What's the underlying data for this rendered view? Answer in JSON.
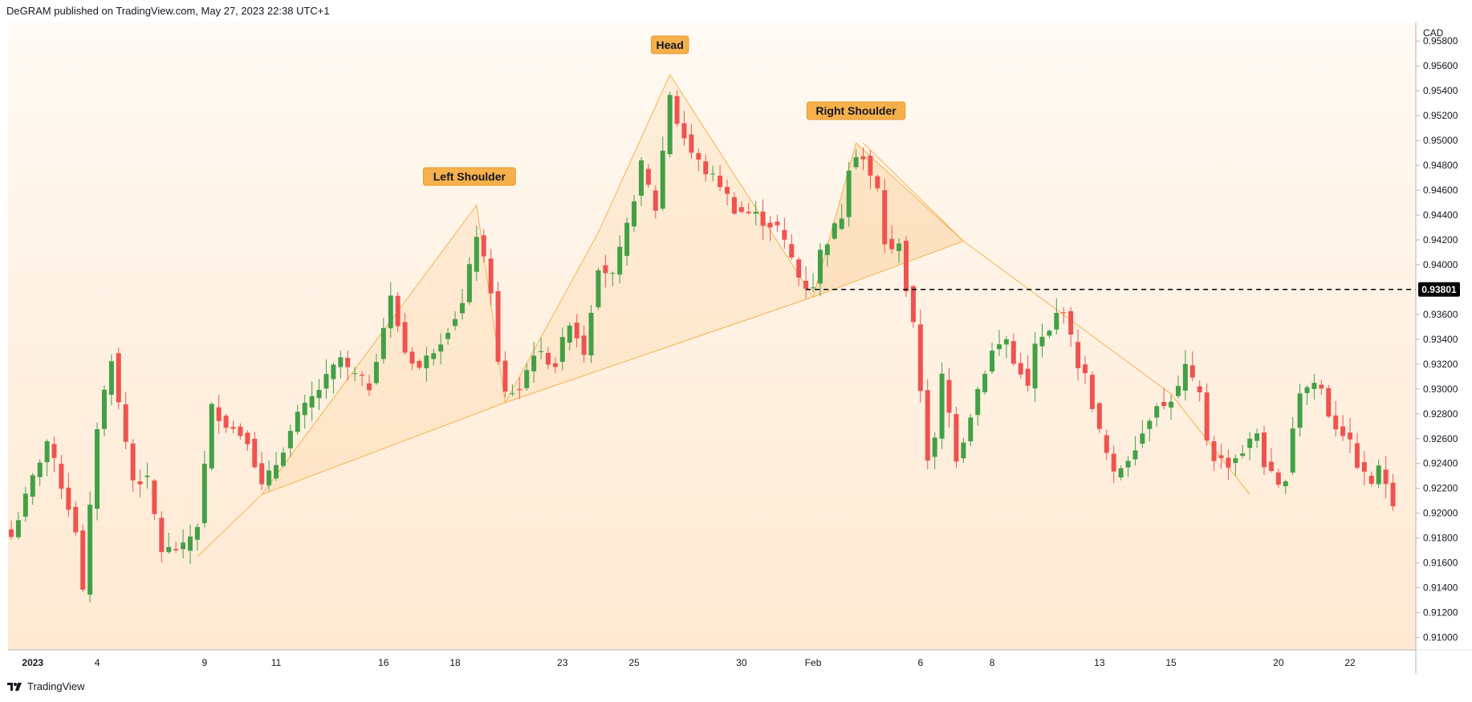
{
  "header": {
    "publisher": "DeGRAM published on TradingView.com, May 27, 2023 22:38 UTC+1"
  },
  "footer": {
    "brand": "TradingView"
  },
  "colors": {
    "up": "#43a047",
    "down": "#ef5350",
    "pattern_line": "#f6b04b",
    "background": "#fff4e6"
  },
  "chart_data": {
    "type": "candlestick",
    "currency_label": "CAD",
    "ylim": [
      0.909,
      0.9595
    ],
    "y_ticks": [
      "0.95800",
      "0.95600",
      "0.95400",
      "0.95200",
      "0.95000",
      "0.94800",
      "0.94600",
      "0.94400",
      "0.94200",
      "0.94000",
      "0.93600",
      "0.93400",
      "0.93200",
      "0.93000",
      "0.92800",
      "0.92600",
      "0.92400",
      "0.92200",
      "0.92000",
      "0.91800",
      "0.91600",
      "0.91400",
      "0.91200",
      "0.91000"
    ],
    "x_ticks": [
      {
        "label": "2023",
        "bar": 3
      },
      {
        "label": "4",
        "bar": 12
      },
      {
        "label": "9",
        "bar": 27
      },
      {
        "label": "11",
        "bar": 37
      },
      {
        "label": "16",
        "bar": 52
      },
      {
        "label": "18",
        "bar": 62
      },
      {
        "label": "23",
        "bar": 77
      },
      {
        "label": "25",
        "bar": 87
      },
      {
        "label": "30",
        "bar": 102
      },
      {
        "label": "Feb",
        "bar": 112
      },
      {
        "label": "6",
        "bar": 127
      },
      {
        "label": "8",
        "bar": 137
      },
      {
        "label": "13",
        "bar": 152
      },
      {
        "label": "15",
        "bar": 162
      },
      {
        "label": "20",
        "bar": 177
      },
      {
        "label": "22",
        "bar": 187
      }
    ],
    "key_level": 0.93801,
    "key_level_label": "0.93801",
    "pattern_labels": [
      {
        "text": "Left Shoulder",
        "bar": 64,
        "price": 0.9471
      },
      {
        "text": "Head",
        "bar": 92,
        "price": 0.9577
      },
      {
        "text": "Right Shoulder",
        "bar": 118,
        "price": 0.9524
      }
    ],
    "zigzag": [
      [
        26,
        0.9165
      ],
      [
        35,
        0.9215
      ],
      [
        65,
        0.9448
      ],
      [
        69,
        0.9289
      ],
      [
        82,
        0.9426
      ],
      [
        92,
        0.9553
      ],
      [
        112,
        0.9374
      ],
      [
        118,
        0.9498
      ],
      [
        133,
        0.9419
      ]
    ],
    "neckline": [
      [
        35,
        0.9215
      ],
      [
        69,
        0.9289
      ],
      [
        112,
        0.9374
      ],
      [
        133,
        0.9419
      ]
    ],
    "declining_line": [
      [
        119,
        0.9498
      ],
      [
        133,
        0.9419
      ],
      [
        162,
        0.9296
      ],
      [
        173,
        0.9215
      ]
    ],
    "anchors": [
      [
        0,
        0.9181
      ],
      [
        3,
        0.9228
      ],
      [
        5,
        0.9258
      ],
      [
        9,
        0.9187
      ],
      [
        10,
        0.9136
      ],
      [
        12,
        0.927
      ],
      [
        14,
        0.9326
      ],
      [
        15,
        0.9288
      ],
      [
        17,
        0.9227
      ],
      [
        19,
        0.9226
      ],
      [
        21,
        0.917
      ],
      [
        24,
        0.9172
      ],
      [
        26,
        0.9191
      ],
      [
        28,
        0.9285
      ],
      [
        30,
        0.9272
      ],
      [
        33,
        0.926
      ],
      [
        35,
        0.9221
      ],
      [
        37,
        0.924
      ],
      [
        40,
        0.9278
      ],
      [
        43,
        0.93
      ],
      [
        46,
        0.9325
      ],
      [
        47,
        0.9315
      ],
      [
        50,
        0.9302
      ],
      [
        52,
        0.935
      ],
      [
        53,
        0.9373
      ],
      [
        55,
        0.933
      ],
      [
        57,
        0.9317
      ],
      [
        60,
        0.934
      ],
      [
        63,
        0.9368
      ],
      [
        65,
        0.9425
      ],
      [
        67,
        0.938
      ],
      [
        68,
        0.932
      ],
      [
        69,
        0.9296
      ],
      [
        71,
        0.93
      ],
      [
        73,
        0.933
      ],
      [
        76,
        0.932
      ],
      [
        78,
        0.9355
      ],
      [
        80,
        0.933
      ],
      [
        82,
        0.94
      ],
      [
        84,
        0.939
      ],
      [
        86,
        0.943
      ],
      [
        88,
        0.948
      ],
      [
        90,
        0.9445
      ],
      [
        92,
        0.9538
      ],
      [
        93,
        0.9515
      ],
      [
        95,
        0.949
      ],
      [
        97,
        0.9475
      ],
      [
        99,
        0.9465
      ],
      [
        101,
        0.9445
      ],
      [
        102,
        0.9443
      ],
      [
        104,
        0.944
      ],
      [
        105,
        0.9435
      ],
      [
        107,
        0.943
      ],
      [
        109,
        0.9405
      ],
      [
        110,
        0.939
      ],
      [
        111,
        0.9383
      ],
      [
        112,
        0.9384
      ],
      [
        113,
        0.941
      ],
      [
        114,
        0.942
      ],
      [
        116,
        0.944
      ],
      [
        117,
        0.948
      ],
      [
        118,
        0.949
      ],
      [
        119,
        0.9485
      ],
      [
        120,
        0.947
      ],
      [
        121,
        0.946
      ],
      [
        122,
        0.9418
      ],
      [
        123,
        0.941
      ],
      [
        124,
        0.942
      ],
      [
        125,
        0.938
      ],
      [
        126,
        0.935
      ],
      [
        127,
        0.93
      ],
      [
        128,
        0.9245
      ],
      [
        129,
        0.9258
      ],
      [
        130,
        0.931
      ],
      [
        131,
        0.928
      ],
      [
        132,
        0.9245
      ],
      [
        133,
        0.926
      ],
      [
        134,
        0.928
      ],
      [
        135,
        0.93
      ],
      [
        137,
        0.933
      ],
      [
        139,
        0.934
      ],
      [
        140,
        0.932
      ],
      [
        141,
        0.9315
      ],
      [
        142,
        0.93
      ],
      [
        143,
        0.9335
      ],
      [
        145,
        0.9345
      ],
      [
        146,
        0.936
      ],
      [
        147,
        0.9365
      ],
      [
        148,
        0.934
      ],
      [
        149,
        0.932
      ],
      [
        150,
        0.931
      ],
      [
        152,
        0.9265
      ],
      [
        154,
        0.923
      ],
      [
        156,
        0.9245
      ],
      [
        158,
        0.9265
      ],
      [
        160,
        0.929
      ],
      [
        161,
        0.9285
      ],
      [
        163,
        0.93
      ],
      [
        164,
        0.9318
      ],
      [
        165,
        0.9305
      ],
      [
        166,
        0.9295
      ],
      [
        167,
        0.926
      ],
      [
        168,
        0.9245
      ],
      [
        170,
        0.924
      ],
      [
        172,
        0.925
      ],
      [
        174,
        0.9265
      ],
      [
        175,
        0.924
      ],
      [
        177,
        0.922
      ],
      [
        178,
        0.923
      ],
      [
        179,
        0.927
      ],
      [
        180,
        0.9298
      ],
      [
        182,
        0.9305
      ],
      [
        183,
        0.93
      ],
      [
        184,
        0.928
      ],
      [
        185,
        0.927
      ],
      [
        186,
        0.9265
      ],
      [
        187,
        0.9255
      ],
      [
        188,
        0.924
      ],
      [
        189,
        0.923
      ],
      [
        190,
        0.9225
      ],
      [
        191,
        0.9235
      ],
      [
        192,
        0.9225
      ],
      [
        193,
        0.921
      ]
    ]
  }
}
